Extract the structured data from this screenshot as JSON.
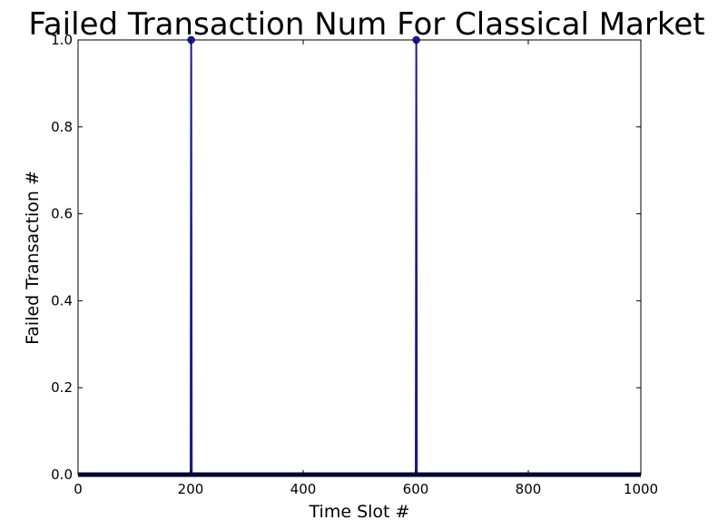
{
  "chart_data": {
    "type": "line",
    "title": "Failed Transaction Num For Classical Market",
    "xlabel": "Time Slot #",
    "ylabel": "Failed Transaction #",
    "xlim": [
      0,
      1000
    ],
    "ylim": [
      0,
      1.0
    ],
    "xticks": [
      "0",
      "200",
      "400",
      "600",
      "800",
      "1000"
    ],
    "yticks": [
      "0.0",
      "0.2",
      "0.4",
      "0.6",
      "0.8",
      "1.0"
    ],
    "grid": false,
    "legend": "none",
    "series": [
      {
        "color": "#1a1a8c",
        "marker": "circle",
        "points": [
          [
            0,
            0
          ],
          [
            200,
            0
          ],
          [
            201,
            1
          ],
          [
            202,
            0
          ],
          [
            600,
            0
          ],
          [
            601,
            1
          ],
          [
            602,
            0
          ],
          [
            1000,
            0
          ]
        ]
      }
    ]
  }
}
